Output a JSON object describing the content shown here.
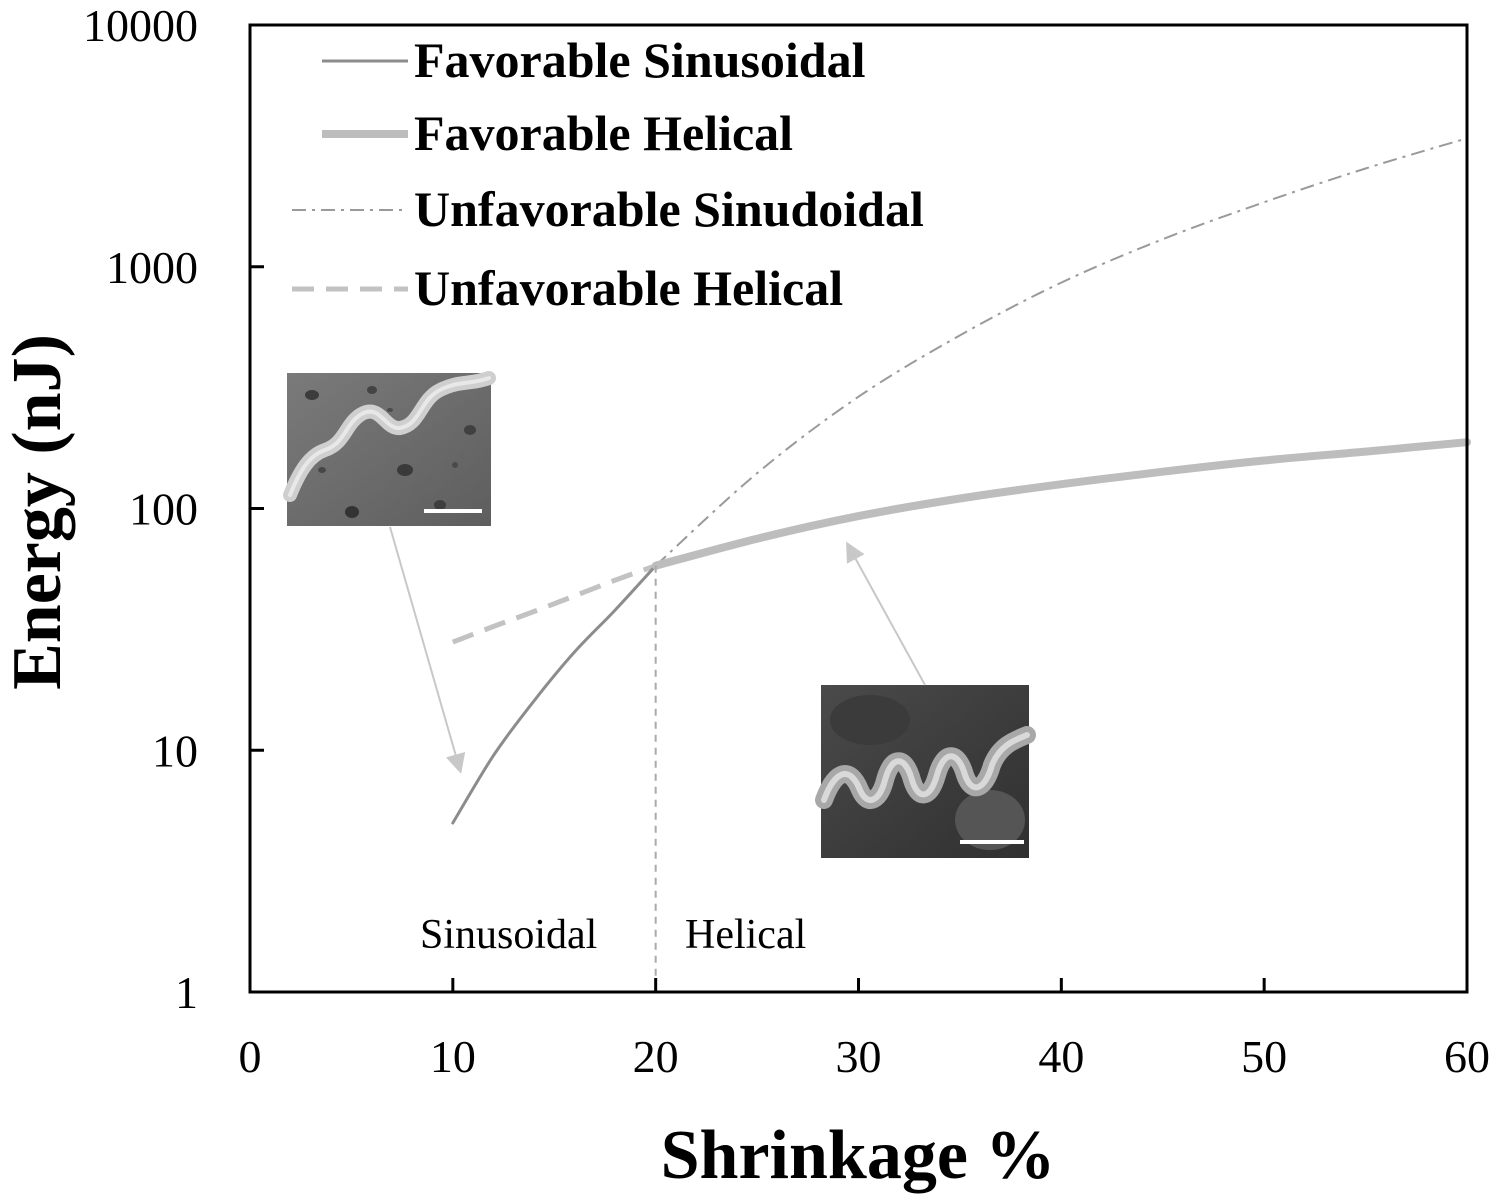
{
  "chart_data": {
    "type": "line",
    "xlabel": "Shrinkage %",
    "ylabel": "Energy (nJ)",
    "xlim": [
      0,
      60
    ],
    "ylim": [
      1,
      10000
    ],
    "yscale": "log",
    "x_ticks": [
      "0",
      "10",
      "20",
      "30",
      "40",
      "50",
      "60"
    ],
    "y_ticks": [
      "1",
      "10",
      "100",
      "1000",
      "10000"
    ],
    "grid": false,
    "legend_position": "top-left",
    "series": [
      {
        "name": "Favorable Sinusoidal",
        "color": "#8c8c8c",
        "style": "solid-thin",
        "x": [
          10,
          12,
          14,
          16,
          18,
          20
        ],
        "y": [
          5,
          9.5,
          16,
          25.5,
          38,
          58
        ]
      },
      {
        "name": "Favorable Helical",
        "color": "#bdbdbd",
        "style": "solid-thick",
        "x": [
          20,
          25,
          30,
          35,
          40,
          45,
          50,
          55,
          60
        ],
        "y": [
          58,
          75,
          93,
          110,
          126,
          142,
          158,
          172,
          188
        ]
      },
      {
        "name": "Unfavorable Sinudoidal",
        "color": "#9a9a9a",
        "style": "dash-dot",
        "x": [
          20,
          25,
          30,
          35,
          40,
          45,
          50,
          55,
          60
        ],
        "y": [
          58,
          140,
          290,
          520,
          860,
          1300,
          1850,
          2550,
          3400
        ]
      },
      {
        "name": "Unfavorable Helical",
        "color": "#c2c2c2",
        "style": "dashed",
        "x": [
          10,
          12,
          14,
          16,
          18,
          20
        ],
        "y": [
          28,
          32.5,
          37.5,
          43.5,
          50.5,
          58
        ]
      }
    ],
    "annotations": {
      "divider_x": 20,
      "region_left": "Sinusoidal",
      "region_right": "Helical"
    }
  }
}
